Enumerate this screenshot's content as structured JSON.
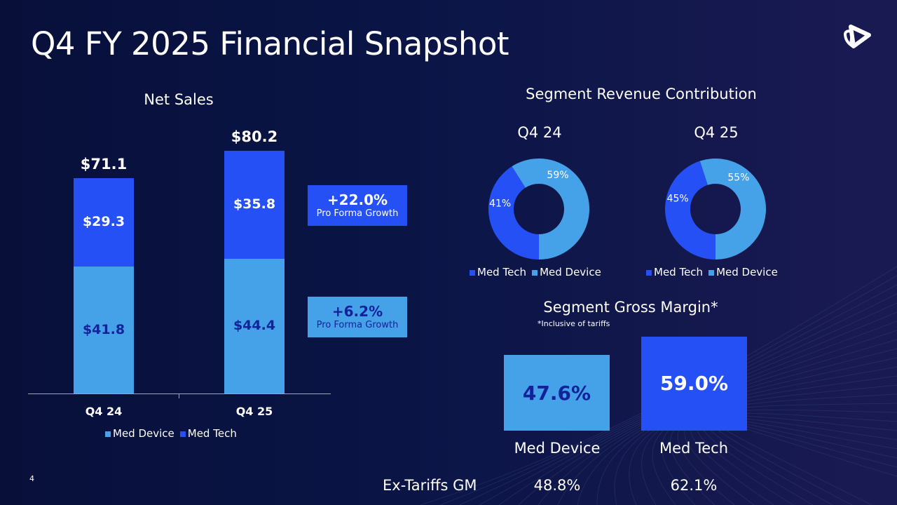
{
  "title": "Q4 FY 2025 Financial Snapshot",
  "page_number": "4",
  "colors": {
    "med_device": "#45a2e8",
    "med_tech": "#2450f5",
    "dark_text": "#12239a"
  },
  "chart_data": [
    {
      "type": "bar",
      "stacked": true,
      "title": "Net Sales",
      "categories": [
        "Q4 24",
        "Q4 25"
      ],
      "series": [
        {
          "name": "Med Device",
          "values": [
            41.8,
            44.4
          ],
          "labels": [
            "$41.8",
            "$44.4"
          ]
        },
        {
          "name": "Med Tech",
          "values": [
            29.3,
            35.8
          ],
          "labels": [
            "$29.3",
            "$35.8"
          ]
        }
      ],
      "totals": [
        71.1,
        80.2
      ],
      "total_labels": [
        "$71.1",
        "$80.2"
      ],
      "legend": [
        "Med Device",
        "Med Tech"
      ],
      "legend_position": "bottom"
    },
    {
      "type": "pie",
      "donut": true,
      "title": "Segment Revenue Contribution",
      "subtitle": "Q4 24",
      "slices": [
        {
          "name": "Med Tech",
          "value": 41,
          "label": "41%"
        },
        {
          "name": "Med Device",
          "value": 59,
          "label": "59%"
        }
      ],
      "legend": [
        "Med Tech",
        "Med Device"
      ]
    },
    {
      "type": "pie",
      "donut": true,
      "title": "Segment Revenue Contribution",
      "subtitle": "Q4 25",
      "slices": [
        {
          "name": "Med Tech",
          "value": 45,
          "label": "45%"
        },
        {
          "name": "Med Device",
          "value": 55,
          "label": "55%"
        }
      ],
      "legend": [
        "Med Tech",
        "Med Device"
      ]
    },
    {
      "type": "bar",
      "title": "Segment Gross Margin*",
      "note": "*Inclusive of tariffs",
      "categories": [
        "Med Device",
        "Med Tech"
      ],
      "values": [
        47.6,
        59.0
      ],
      "labels": [
        "47.6%",
        "59.0%"
      ]
    }
  ],
  "growth": [
    {
      "value": "+22.0%",
      "label": "Pro Forma Growth"
    },
    {
      "value": "+6.2%",
      "label": "Pro Forma Growth"
    }
  ],
  "ex_tariffs": {
    "label": "Ex-Tariffs GM",
    "med_device": "48.8%",
    "med_tech": "62.1%"
  }
}
